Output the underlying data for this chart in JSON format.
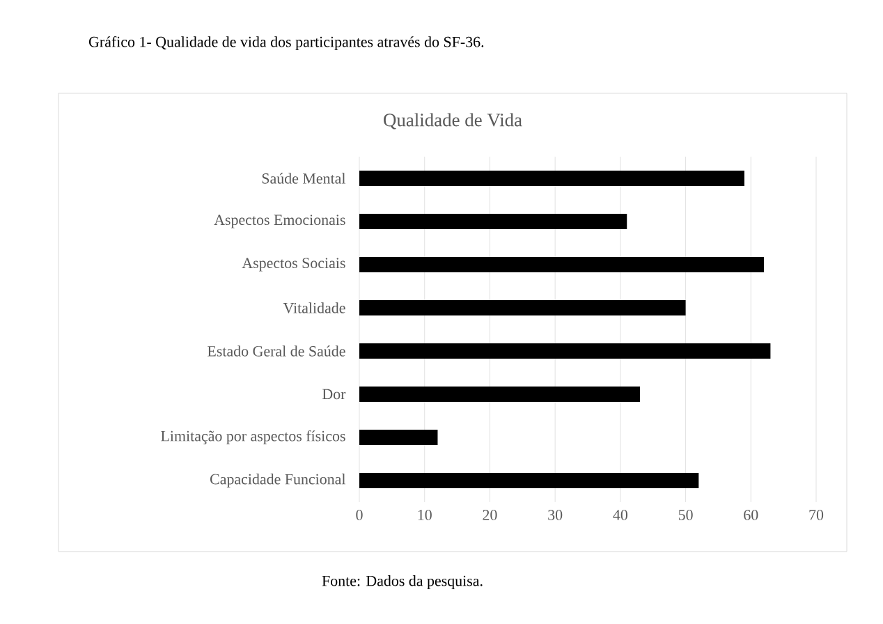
{
  "chart_data": {
    "type": "bar",
    "orientation": "horizontal",
    "title": "Gráfico 1- Qualidade de vida dos participantes através do SF-36.",
    "subtitle": "Qualidade de Vida",
    "categories": [
      "Saúde Mental",
      "Aspectos Emocionais",
      "Aspectos Sociais",
      "Vitalidade",
      "Estado Geral de Saúde",
      "Dor",
      "Limitação por aspectos físicos",
      "Capacidade Funcional"
    ],
    "values": [
      59,
      41,
      62,
      50,
      63,
      43,
      12,
      52
    ],
    "color": "#000000",
    "xlim": [
      0,
      70
    ],
    "xticks": [
      0,
      10,
      20,
      30,
      40,
      50,
      60,
      70
    ],
    "grid": "x",
    "annotations": [
      "Fonte: Dados da pesquisa."
    ]
  }
}
